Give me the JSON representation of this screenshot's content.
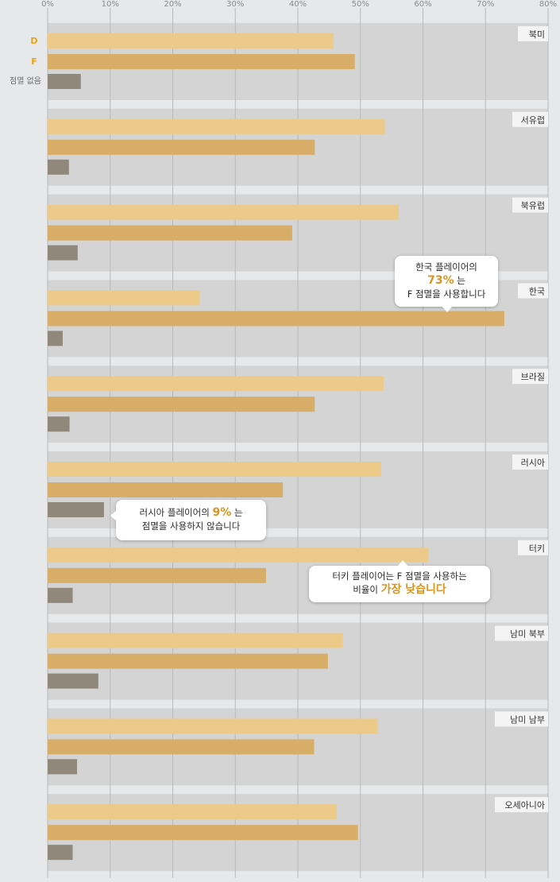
{
  "colors": {
    "background": "#e6e8e9",
    "panel": "#d4d4d4",
    "bar_d": "#ecca8a",
    "bar_f": "#d7ad67",
    "bar_none": "#8f887b",
    "legend_accent": "#e8a413",
    "highlight": "#d9951f"
  },
  "legend": {
    "d": "D",
    "f": "F",
    "none": "점멸 없음"
  },
  "chart_data": {
    "type": "bar",
    "orientation": "horizontal",
    "x_tick_labels": [
      "0%",
      "10%",
      "20%",
      "30%",
      "40%",
      "50%",
      "60%",
      "70%",
      "80%"
    ],
    "xlim": [
      0,
      80
    ],
    "grid": true,
    "legend_position": "top-left",
    "categories": [
      "북미",
      "서유럽",
      "북유럽",
      "한국",
      "브라질",
      "러시아",
      "터키",
      "남미 북부",
      "남미 남부",
      "오세아니아"
    ],
    "series": [
      {
        "name": "D",
        "values": [
          45.7,
          53.9,
          56.1,
          24.3,
          53.7,
          53.3,
          60.9,
          47.2,
          52.8,
          46.2
        ]
      },
      {
        "name": "F",
        "values": [
          49.1,
          42.7,
          39.1,
          73.0,
          42.7,
          37.6,
          34.9,
          44.8,
          42.6,
          49.6
        ]
      },
      {
        "name": "점멸 없음",
        "values": [
          5.3,
          3.4,
          4.8,
          2.4,
          3.5,
          9.0,
          4.0,
          8.1,
          4.7,
          4.0
        ]
      }
    ]
  },
  "callouts": {
    "korea": {
      "line1": "한국 플레이어의",
      "value": "73%",
      "suffix": "는",
      "line3": "F 점멸을 사용합니다"
    },
    "russia": {
      "prefix": "러시아 플레이어의",
      "value": "9%",
      "suffix": "는",
      "line2": "점멸을 사용하지 않습니다"
    },
    "turkey": {
      "line1": "터키 플레이어는 F 점멸을 사용하는",
      "prefix": "비율이",
      "value": "가장 낮습니다"
    }
  }
}
